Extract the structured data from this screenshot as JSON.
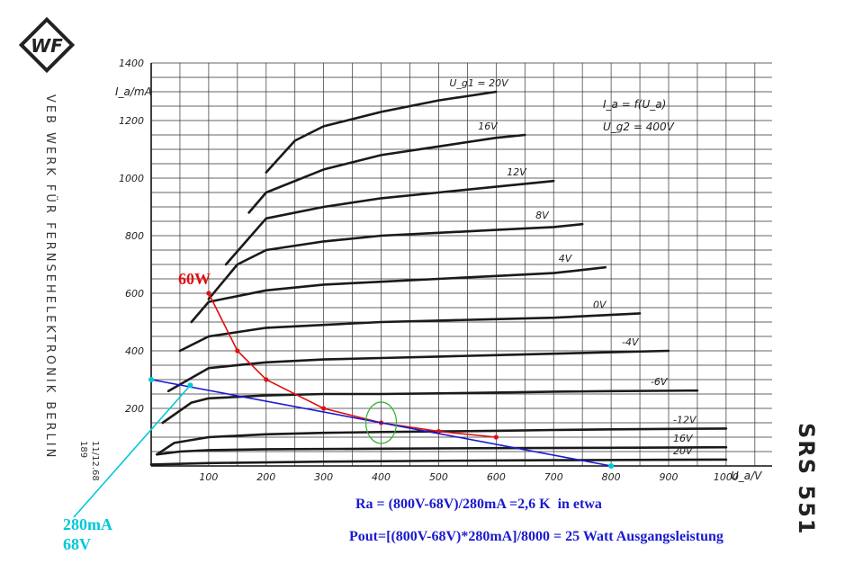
{
  "chart_data": {
    "type": "line",
    "x_ticks": [
      100,
      200,
      300,
      400,
      500,
      600,
      700,
      800,
      900,
      1000
    ],
    "y_ticks": [
      200,
      400,
      600,
      800,
      1000,
      1200,
      1400
    ],
    "xlabel": "U_a/V",
    "ylabel": "I_a/mA",
    "xlim": [
      0,
      1080
    ],
    "ylim": [
      0,
      1400
    ],
    "grid": true,
    "curve_legend": [
      "I_a = f(U_a)",
      "U_g2 = 400V"
    ],
    "series": [
      {
        "name": "U_g1 = 20V",
        "x": [
          200,
          250,
          300,
          400,
          500,
          600
        ],
        "y": [
          1020,
          1130,
          1180,
          1230,
          1270,
          1300
        ]
      },
      {
        "name": "16V",
        "x": [
          170,
          200,
          300,
          400,
          500,
          600,
          650
        ],
        "y": [
          880,
          950,
          1030,
          1080,
          1110,
          1140,
          1150
        ]
      },
      {
        "name": "12V",
        "x": [
          130,
          200,
          300,
          400,
          500,
          600,
          700
        ],
        "y": [
          700,
          860,
          900,
          930,
          950,
          970,
          990
        ]
      },
      {
        "name": "8V",
        "x": [
          100,
          150,
          200,
          300,
          400,
          500,
          600,
          700,
          750
        ],
        "y": [
          580,
          700,
          750,
          780,
          800,
          810,
          820,
          830,
          840
        ]
      },
      {
        "name": "4V",
        "x": [
          70,
          100,
          200,
          300,
          400,
          500,
          600,
          700,
          790
        ],
        "y": [
          500,
          570,
          610,
          630,
          640,
          650,
          660,
          670,
          690
        ]
      },
      {
        "name": "0V",
        "x": [
          50,
          100,
          200,
          300,
          400,
          500,
          600,
          700,
          850
        ],
        "y": [
          400,
          450,
          480,
          490,
          500,
          505,
          510,
          515,
          530
        ]
      },
      {
        "name": "-4V",
        "x": [
          30,
          100,
          200,
          300,
          400,
          500,
          600,
          700,
          800,
          900
        ],
        "y": [
          260,
          340,
          360,
          370,
          375,
          380,
          385,
          390,
          395,
          400
        ]
      },
      {
        "name": "-6V",
        "x": [
          20,
          70,
          100,
          200,
          300,
          400,
          500,
          600,
          700,
          800,
          950
        ],
        "y": [
          150,
          220,
          235,
          245,
          250,
          250,
          252,
          255,
          258,
          260,
          262
        ]
      },
      {
        "name": "-12V",
        "x": [
          10,
          40,
          100,
          200,
          300,
          400,
          500,
          600,
          700,
          800,
          1000
        ],
        "y": [
          40,
          80,
          100,
          110,
          115,
          118,
          120,
          122,
          125,
          127,
          130
        ]
      },
      {
        "name": "16V",
        "x": [
          10,
          50,
          100,
          200,
          400,
          600,
          800,
          1000
        ],
        "y": [
          40,
          50,
          55,
          58,
          60,
          62,
          63,
          65
        ]
      },
      {
        "name": "20V",
        "x": [
          0,
          100,
          300,
          500,
          700,
          1000
        ],
        "y": [
          5,
          10,
          15,
          18,
          20,
          22
        ]
      },
      {
        "name": "60W",
        "x": [
          100,
          150,
          200,
          300,
          400,
          500,
          600
        ],
        "y": [
          600,
          400,
          300,
          200,
          150,
          120,
          100
        ]
      },
      {
        "name": "load line",
        "x": [
          0,
          68,
          800
        ],
        "y": [
          300,
          280,
          0
        ]
      }
    ],
    "annotations": {
      "power_label": "60W",
      "point_current": "280mA",
      "point_voltage": "68V",
      "ra_formula": "Ra = (800V-68V)/280mA =2,6 K  in etwa",
      "pout_formula": "Pout=[(800V-68V)*280mA]/8000 = 25 Watt Ausgangsleistung"
    }
  },
  "sheet": {
    "company": "VEB WERK FÜR FERNSEHELEKTRONIK BERLIN",
    "doc_no": "11/12.68\n189",
    "type_no": "SRS 551",
    "logo": "WF"
  },
  "colors": {
    "curves": "#1a1a1a",
    "power_hyperbola": "#e01010",
    "load_line": "#1a1ad0",
    "operating_point": "#00c8d8",
    "quiescent_marker": "#2bb52b"
  }
}
